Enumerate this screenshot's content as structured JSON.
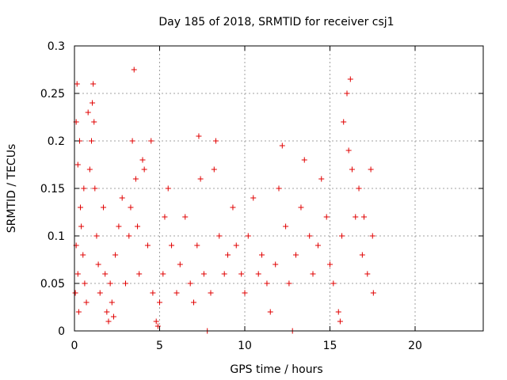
{
  "chart_data": {
    "type": "scatter",
    "title": "Day 185 of 2018, SRMTID for receiver csj1",
    "xlabel": "GPS time / hours",
    "ylabel": "SRMTID / TECUs",
    "xlim": [
      0,
      24
    ],
    "ylim": [
      0,
      0.3
    ],
    "x_ticks": [
      0,
      5,
      10,
      15,
      20
    ],
    "x_tick_labels": [
      "0",
      "5",
      "10",
      "15",
      "20"
    ],
    "y_ticks": [
      0,
      0.05,
      0.1,
      0.15,
      0.2,
      0.25,
      0.3
    ],
    "y_tick_labels": [
      "0",
      "0.05",
      "0.1",
      "0.15",
      "0.2",
      "0.25",
      "0.3"
    ],
    "grid": true,
    "marker": "+",
    "series": [
      {
        "name": "SRMTID csj1",
        "color": "#e00000",
        "points": [
          [
            0.1,
            0.22
          ],
          [
            0.15,
            0.26
          ],
          [
            0.2,
            0.175
          ],
          [
            0.3,
            0.2
          ],
          [
            0.35,
            0.13
          ],
          [
            0.5,
            0.08
          ],
          [
            0.6,
            0.05
          ],
          [
            0.7,
            0.03
          ],
          [
            0.05,
            0.04
          ],
          [
            0.1,
            0.09
          ],
          [
            0.2,
            0.06
          ],
          [
            0.25,
            0.02
          ],
          [
            0.4,
            0.11
          ],
          [
            0.55,
            0.15
          ],
          [
            0.8,
            0.23
          ],
          [
            0.9,
            0.17
          ],
          [
            1.0,
            0.2
          ],
          [
            1.05,
            0.24
          ],
          [
            1.1,
            0.26
          ],
          [
            1.15,
            0.22
          ],
          [
            1.2,
            0.15
          ],
          [
            1.3,
            0.1
          ],
          [
            1.4,
            0.07
          ],
          [
            1.5,
            0.04
          ],
          [
            1.7,
            0.13
          ],
          [
            1.8,
            0.06
          ],
          [
            1.9,
            0.02
          ],
          [
            2.0,
            0.01
          ],
          [
            2.1,
            0.05
          ],
          [
            2.2,
            0.03
          ],
          [
            2.3,
            0.015
          ],
          [
            2.4,
            0.08
          ],
          [
            2.6,
            0.11
          ],
          [
            2.8,
            0.14
          ],
          [
            3.0,
            0.05
          ],
          [
            3.2,
            0.1
          ],
          [
            3.3,
            0.13
          ],
          [
            3.4,
            0.2
          ],
          [
            3.5,
            0.275
          ],
          [
            3.6,
            0.16
          ],
          [
            3.7,
            0.11
          ],
          [
            3.8,
            0.06
          ],
          [
            4.0,
            0.18
          ],
          [
            4.1,
            0.17
          ],
          [
            4.3,
            0.09
          ],
          [
            4.5,
            0.2
          ],
          [
            4.6,
            0.04
          ],
          [
            4.8,
            0.01
          ],
          [
            4.9,
            0.005
          ],
          [
            5.0,
            0.03
          ],
          [
            5.2,
            0.06
          ],
          [
            5.3,
            0.12
          ],
          [
            5.5,
            0.15
          ],
          [
            5.7,
            0.09
          ],
          [
            6.0,
            0.04
          ],
          [
            6.2,
            0.07
          ],
          [
            6.5,
            0.12
          ],
          [
            6.8,
            0.05
          ],
          [
            7.0,
            0.03
          ],
          [
            7.2,
            0.09
          ],
          [
            7.3,
            0.205
          ],
          [
            7.4,
            0.16
          ],
          [
            7.6,
            0.06
          ],
          [
            7.8,
            0.0
          ],
          [
            8.0,
            0.04
          ],
          [
            8.2,
            0.17
          ],
          [
            8.3,
            0.2
          ],
          [
            8.5,
            0.1
          ],
          [
            8.8,
            0.06
          ],
          [
            9.0,
            0.08
          ],
          [
            9.3,
            0.13
          ],
          [
            9.5,
            0.09
          ],
          [
            9.8,
            0.06
          ],
          [
            10.0,
            0.04
          ],
          [
            10.2,
            0.1
          ],
          [
            10.5,
            0.14
          ],
          [
            10.8,
            0.06
          ],
          [
            11.0,
            0.08
          ],
          [
            11.3,
            0.05
          ],
          [
            11.5,
            0.02
          ],
          [
            11.8,
            0.07
          ],
          [
            12.0,
            0.15
          ],
          [
            12.2,
            0.195
          ],
          [
            12.4,
            0.11
          ],
          [
            12.6,
            0.05
          ],
          [
            12.8,
            0.0
          ],
          [
            13.0,
            0.08
          ],
          [
            13.3,
            0.13
          ],
          [
            13.5,
            0.18
          ],
          [
            13.8,
            0.1
          ],
          [
            14.0,
            0.06
          ],
          [
            14.3,
            0.09
          ],
          [
            14.5,
            0.16
          ],
          [
            14.8,
            0.12
          ],
          [
            15.0,
            0.07
          ],
          [
            15.2,
            0.05
          ],
          [
            15.5,
            0.02
          ],
          [
            15.6,
            0.01
          ],
          [
            15.7,
            0.1
          ],
          [
            15.8,
            0.22
          ],
          [
            16.0,
            0.25
          ],
          [
            16.1,
            0.19
          ],
          [
            16.2,
            0.265
          ],
          [
            16.3,
            0.17
          ],
          [
            16.5,
            0.12
          ],
          [
            16.7,
            0.15
          ],
          [
            16.9,
            0.08
          ],
          [
            17.0,
            0.12
          ],
          [
            17.2,
            0.06
          ],
          [
            17.4,
            0.17
          ],
          [
            17.5,
            0.1
          ],
          [
            17.55,
            0.04
          ]
        ]
      }
    ]
  }
}
